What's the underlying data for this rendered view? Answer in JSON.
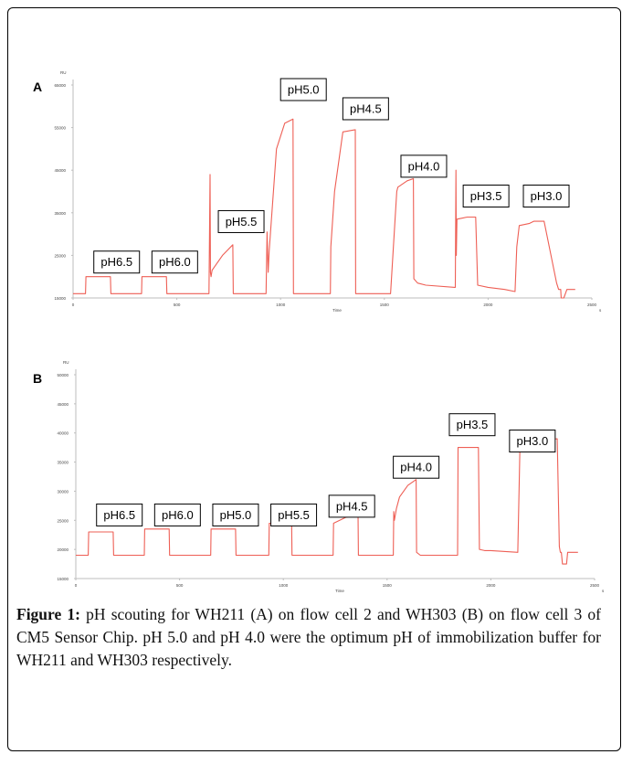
{
  "caption": {
    "label": "Figure 1:",
    "text": " pH scouting for WH211 (A) on flow cell 2 and WH303 (B) on flow cell 3 of CM5 Sensor Chip. pH 5.0 and pH 4.0 were the optimum pH of immobilization buffer for WH211 and WH303 respectively."
  },
  "chart_data": [
    {
      "type": "line",
      "panel_label": "A",
      "ylabel": "RU",
      "xlabel": "Time",
      "x_unit": "s",
      "xlim": [
        0,
        2500
      ],
      "ylim": [
        15000,
        65000
      ],
      "xticks": [
        0,
        500,
        1000,
        1500,
        2000,
        2500
      ],
      "xtick_labels": [
        "0",
        "500",
        "1000",
        "1500",
        "2000",
        "2500"
      ],
      "yticks": [
        15000,
        25000,
        35000,
        45000,
        55000,
        65000
      ],
      "ytick_labels": [
        "15000",
        "25000",
        "35000",
        "45000",
        "55000",
        "65000"
      ],
      "line_color": "#ee5f55",
      "annotations": [
        {
          "text": "pH6.5",
          "x": 100,
          "y": 26000
        },
        {
          "text": "pH6.0",
          "x": 380,
          "y": 26000
        },
        {
          "text": "pH5.5",
          "x": 700,
          "y": 35500
        },
        {
          "text": "pH5.0",
          "x": 1000,
          "y": 66500
        },
        {
          "text": "pH4.5",
          "x": 1300,
          "y": 62000
        },
        {
          "text": "pH4.0",
          "x": 1580,
          "y": 48500
        },
        {
          "text": "pH3.5",
          "x": 1880,
          "y": 41500
        },
        {
          "text": "pH3.0",
          "x": 2170,
          "y": 41500
        }
      ],
      "series": [
        {
          "x": [
            0,
            60,
            62,
            180,
            182,
            330,
            332,
            450,
            452,
            650,
            655,
            660,
            662,
            665,
            670,
            720,
            770,
            772,
            930,
            935,
            940,
            945,
            980,
            1020,
            1060,
            1062,
            1240,
            1242,
            1260,
            1300,
            1360,
            1362,
            1530,
            1560,
            1565,
            1610,
            1640,
            1642,
            1660,
            1700,
            1840,
            1842,
            1845,
            1847,
            1850,
            1900,
            1940,
            1950,
            2000,
            2080,
            2130,
            2138,
            2150,
            2200,
            2220,
            2270,
            2330,
            2340,
            2350,
            2352,
            2365,
            2380,
            2390,
            2420
          ],
          "y": [
            16000,
            16000,
            20000,
            20000,
            16000,
            16000,
            20000,
            20000,
            16000,
            16000,
            16000,
            44000,
            21000,
            20000,
            21500,
            25000,
            27500,
            16000,
            16000,
            30500,
            21000,
            26000,
            50000,
            56000,
            57000,
            16000,
            16000,
            27000,
            40000,
            54000,
            54500,
            16000,
            16000,
            40000,
            41000,
            42500,
            43000,
            19500,
            18500,
            18000,
            17500,
            17500,
            45000,
            25000,
            33500,
            34000,
            34000,
            18000,
            17500,
            17000,
            16500,
            27000,
            32000,
            32500,
            33000,
            33000,
            18500,
            17000,
            17000,
            15000,
            15000,
            17000,
            17000,
            17000
          ]
        }
      ]
    },
    {
      "type": "line",
      "panel_label": "B",
      "ylabel": "RU",
      "xlabel": "Time",
      "x_unit": "s",
      "xlim": [
        0,
        2500
      ],
      "ylim": [
        15000,
        50000
      ],
      "xticks": [
        0,
        500,
        1000,
        1500,
        2000,
        2500
      ],
      "xtick_labels": [
        "0",
        "500",
        "1000",
        "1500",
        "2000",
        "2500"
      ],
      "yticks": [
        15000,
        20000,
        25000,
        30000,
        35000,
        40000,
        45000,
        50000
      ],
      "ytick_labels": [
        "15000",
        "20000",
        "25000",
        "30000",
        "35000",
        "40000",
        "45000",
        "50000"
      ],
      "line_color": "#ee5f55",
      "annotations": [
        {
          "text": "pH6.5",
          "x": 100,
          "y": 27800
        },
        {
          "text": "pH6.0",
          "x": 380,
          "y": 27800
        },
        {
          "text": "pH5.0",
          "x": 660,
          "y": 27800
        },
        {
          "text": "pH5.5",
          "x": 940,
          "y": 27800
        },
        {
          "text": "pH4.5",
          "x": 1220,
          "y": 29300
        },
        {
          "text": "pH4.0",
          "x": 1530,
          "y": 36000
        },
        {
          "text": "pH3.5",
          "x": 1800,
          "y": 43300
        },
        {
          "text": "pH3.0",
          "x": 2090,
          "y": 40500
        }
      ],
      "series": [
        {
          "x": [
            0,
            60,
            62,
            180,
            182,
            330,
            332,
            450,
            452,
            650,
            652,
            770,
            772,
            930,
            932,
            1040,
            1042,
            1240,
            1242,
            1300,
            1360,
            1362,
            1530,
            1532,
            1535,
            1545,
            1560,
            1600,
            1640,
            1642,
            1660,
            1700,
            1840,
            1842,
            1940,
            1945,
            1970,
            2000,
            2130,
            2140,
            2200,
            2260,
            2320,
            2330,
            2335,
            2340,
            2345,
            2365,
            2370,
            2375,
            2420
          ],
          "y": [
            19000,
            19000,
            23000,
            23000,
            19000,
            19000,
            23500,
            23500,
            19000,
            19000,
            23500,
            23500,
            19000,
            19000,
            24500,
            24500,
            19000,
            19000,
            24500,
            25500,
            26000,
            19000,
            19000,
            26500,
            25000,
            27000,
            29000,
            31000,
            32000,
            19500,
            19000,
            19000,
            19000,
            37500,
            37500,
            20000,
            19800,
            19800,
            19500,
            37000,
            38500,
            38800,
            39000,
            20500,
            19500,
            19500,
            17500,
            17500,
            19500,
            19500,
            19500
          ]
        }
      ]
    }
  ]
}
